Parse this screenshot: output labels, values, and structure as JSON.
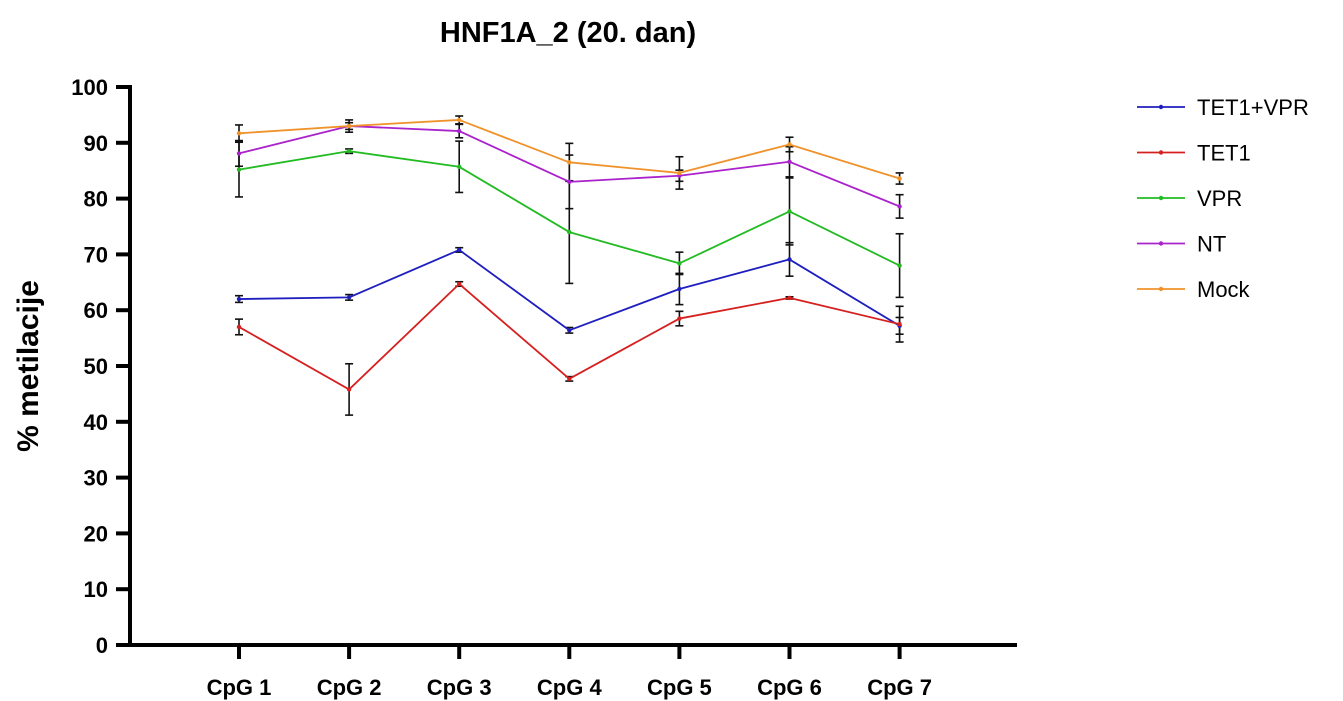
{
  "chart_data": {
    "type": "line",
    "title": "HNF1A_2 (20. dan)",
    "xlabel": "",
    "ylabel": "% metilacije",
    "ylim": [
      0,
      100
    ],
    "yticks": [
      0,
      10,
      20,
      30,
      40,
      50,
      60,
      70,
      80,
      90,
      100
    ],
    "categories": [
      "CpG 1",
      "CpG 2",
      "CpG 3",
      "CpG 4",
      "CpG 5",
      "CpG 6",
      "CpG 7"
    ],
    "legend_position": "top-right",
    "grid": false,
    "series": [
      {
        "name": "TET1+VPR",
        "color": "#1f1fbf",
        "values": [
          62.0,
          62.3,
          70.8,
          56.4,
          63.8,
          69.1,
          57.2
        ],
        "errors": [
          0.6,
          0.5,
          0.4,
          0.5,
          2.8,
          3.0,
          1.5
        ]
      },
      {
        "name": "TET1",
        "color": "#d62020",
        "values": [
          57.0,
          45.8,
          64.7,
          47.7,
          58.5,
          62.2,
          57.5
        ],
        "errors": [
          1.4,
          4.6,
          0.4,
          0.4,
          1.3,
          0.2,
          3.2
        ]
      },
      {
        "name": "VPR",
        "color": "#22bb22",
        "values": [
          85.2,
          88.5,
          85.7,
          74.0,
          68.4,
          77.7,
          68.0
        ],
        "errors": [
          4.9,
          0.4,
          4.6,
          9.2,
          2.0,
          6.0,
          5.7
        ]
      },
      {
        "name": "NT",
        "color": "#aa22cc",
        "values": [
          88.1,
          93.0,
          92.1,
          83.0,
          84.1,
          86.6,
          78.6
        ],
        "errors": [
          2.3,
          1.1,
          1.2,
          4.8,
          1.0,
          2.7,
          2.1
        ]
      },
      {
        "name": "Mock",
        "color": "#f0922a",
        "values": [
          91.7,
          93.0,
          94.1,
          86.5,
          84.6,
          89.7,
          83.6
        ],
        "errors": [
          1.5,
          0.6,
          0.7,
          3.4,
          2.9,
          1.3,
          1.0
        ]
      }
    ]
  }
}
